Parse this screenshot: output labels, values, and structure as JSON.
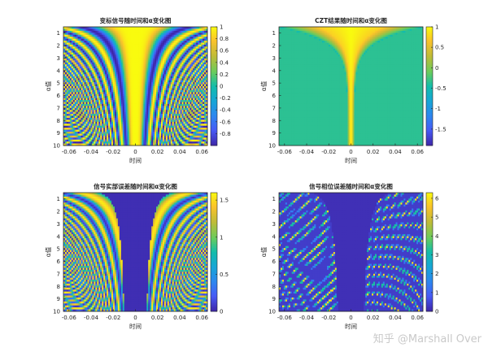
{
  "watermark": "知乎 @Marshall Over",
  "chart_data": [
    {
      "type": "heatmap",
      "title": "变标信号随时间和α变化图",
      "xlabel": "时间",
      "ylabel": "α值",
      "xlim": [
        -0.065,
        0.065
      ],
      "ylim": [
        0.5,
        10
      ],
      "xticks": [
        -0.06,
        -0.04,
        -0.02,
        0,
        0.02,
        0.04,
        0.06
      ],
      "xtick_labels": [
        "-0.06",
        "-0.04",
        "-0.02",
        "0",
        "0.02",
        "0.04",
        "0.06"
      ],
      "yticks": [
        1,
        2,
        3,
        4,
        5,
        6,
        7,
        8,
        9,
        10
      ],
      "colorbar_ticks": [
        -0.8,
        -0.6,
        -0.4,
        -0.2,
        0,
        0.2,
        0.4,
        0.6,
        0.8,
        1
      ],
      "colorbar_tick_labels": [
        "-0.8",
        "-0.6",
        "-0.4",
        "-0.2",
        "0",
        "0.2",
        "0.4",
        "0.6",
        "0.8",
        "1"
      ],
      "clim": [
        -1,
        1
      ],
      "colormap": "parula",
      "model": "chirp"
    },
    {
      "type": "heatmap",
      "title": "CZT结果随时间和α变化图",
      "xlabel": "时间",
      "ylabel": "α值",
      "xlim": [
        -0.065,
        0.065
      ],
      "ylim": [
        0.5,
        10
      ],
      "xticks": [
        -0.06,
        -0.04,
        -0.02,
        0,
        0.02,
        0.04,
        0.06
      ],
      "xtick_labels": [
        "-0.06",
        "-0.04",
        "-0.02",
        "0",
        "0.02",
        "0.04",
        "0.06"
      ],
      "yticks": [
        1,
        2,
        3,
        4,
        5,
        6,
        7,
        8,
        9,
        10
      ],
      "colorbar_ticks": [
        -1.5,
        -1,
        -0.5,
        0,
        0.5,
        1
      ],
      "colorbar_tick_labels": [
        "-1.5",
        "-1",
        "-0.5",
        "0",
        "0.5",
        "1"
      ],
      "clim": [
        -1.9,
        1
      ],
      "colormap": "parula",
      "model": "czt"
    },
    {
      "type": "heatmap",
      "title": "信号实部误差随时间和α变化图",
      "xlabel": "时间",
      "ylabel": "α值",
      "xlim": [
        -0.065,
        0.065
      ],
      "ylim": [
        0.5,
        10
      ],
      "xticks": [
        -0.06,
        -0.04,
        -0.02,
        0,
        0.02,
        0.04,
        0.06
      ],
      "xtick_labels": [
        "-0.06",
        "-0.04",
        "-0.02",
        "0",
        "0.02",
        "0.04",
        "0.06"
      ],
      "yticks": [
        1,
        2,
        3,
        4,
        5,
        6,
        7,
        8,
        9,
        10
      ],
      "colorbar_ticks": [
        0,
        0.5,
        1,
        1.5
      ],
      "colorbar_tick_labels": [
        "0",
        "0.5",
        "1",
        "1.5"
      ],
      "clim": [
        0,
        1.6
      ],
      "colormap": "parula",
      "model": "realerr"
    },
    {
      "type": "heatmap",
      "title": "信号相位误差随时间和α变化图",
      "xlabel": "时间",
      "ylabel": "α值",
      "xlim": [
        -0.065,
        0.065
      ],
      "ylim": [
        0.5,
        10
      ],
      "xticks": [
        -0.06,
        -0.04,
        -0.02,
        0,
        0.02,
        0.04,
        0.06
      ],
      "xtick_labels": [
        "-0.06",
        "-0.04",
        "-0.02",
        "0",
        "0.02",
        "0.04",
        "0.06"
      ],
      "yticks": [
        1,
        2,
        3,
        4,
        5,
        6,
        7,
        8,
        9,
        10
      ],
      "colorbar_ticks": [
        0,
        1,
        2,
        3,
        4,
        5,
        6
      ],
      "colorbar_tick_labels": [
        "0",
        "1",
        "2",
        "3",
        "4",
        "5",
        "6"
      ],
      "clim": [
        0,
        6.3
      ],
      "colormap": "parula",
      "model": "phaseerr"
    }
  ]
}
